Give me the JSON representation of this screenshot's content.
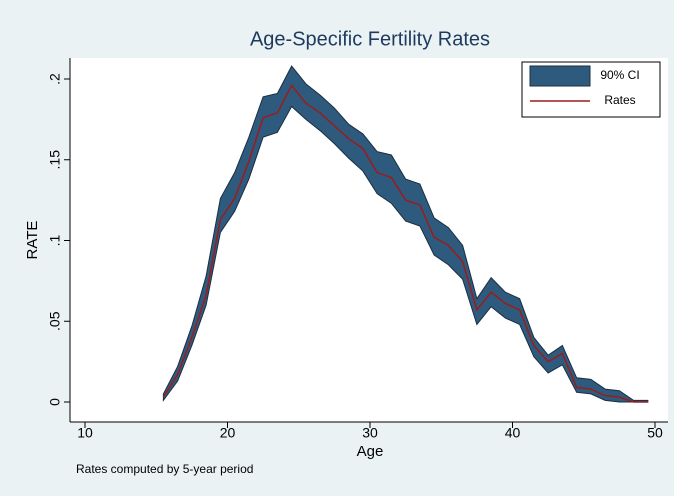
{
  "chart_data": {
    "type": "line",
    "title": "Age-Specific Fertility Rates",
    "xlabel": "Age",
    "ylabel": "RATE",
    "note": "Rates computed by 5-year period",
    "x": [
      15.5,
      16.5,
      17.5,
      18.5,
      19.5,
      20.5,
      21.5,
      22.5,
      23.5,
      24.5,
      25.5,
      26.5,
      27.5,
      28.5,
      29.5,
      30.5,
      31.5,
      32.5,
      33.5,
      34.5,
      35.5,
      36.5,
      37.5,
      38.5,
      39.5,
      40.5,
      41.5,
      42.5,
      43.5,
      44.5,
      45.5,
      46.5,
      47.5,
      48.5,
      49.5
    ],
    "series": [
      {
        "name": "90% CI",
        "color": "#2e5a7e",
        "edge": "#1b2f40",
        "upper": [
          0.005,
          0.022,
          0.047,
          0.078,
          0.126,
          0.142,
          0.164,
          0.189,
          0.191,
          0.208,
          0.197,
          0.19,
          0.182,
          0.172,
          0.166,
          0.155,
          0.153,
          0.138,
          0.135,
          0.114,
          0.108,
          0.097,
          0.064,
          0.077,
          0.068,
          0.064,
          0.04,
          0.029,
          0.035,
          0.015,
          0.014,
          0.008,
          0.007,
          0.001,
          0.001
        ],
        "lower": [
          0.001,
          0.013,
          0.035,
          0.06,
          0.105,
          0.118,
          0.138,
          0.164,
          0.167,
          0.183,
          0.175,
          0.168,
          0.16,
          0.151,
          0.143,
          0.129,
          0.123,
          0.112,
          0.109,
          0.091,
          0.085,
          0.076,
          0.048,
          0.059,
          0.052,
          0.048,
          0.028,
          0.018,
          0.023,
          0.006,
          0.005,
          0.001,
          0,
          0,
          0
        ]
      },
      {
        "name": "Rates",
        "color": "#9b1c1c",
        "values": [
          0.003,
          0.017,
          0.04,
          0.066,
          0.113,
          0.126,
          0.149,
          0.176,
          0.179,
          0.196,
          0.185,
          0.179,
          0.171,
          0.163,
          0.157,
          0.142,
          0.139,
          0.125,
          0.122,
          0.102,
          0.097,
          0.087,
          0.057,
          0.068,
          0.061,
          0.057,
          0.035,
          0.025,
          0.03,
          0.009,
          0.008,
          0.004,
          0.003,
          0,
          0
        ]
      }
    ],
    "xlim": [
      10,
      50
    ],
    "xticks": [
      10,
      20,
      30,
      40,
      50
    ],
    "ylim": [
      0,
      0.2
    ],
    "yticks": [
      0,
      {
        "value": 0.05,
        "label": ".05"
      },
      {
        "value": 0.1,
        "label": ".1"
      },
      {
        "value": 0.15,
        "label": ".15"
      },
      {
        "value": 0.2,
        "label": ".2"
      }
    ],
    "legend": "top-right"
  }
}
